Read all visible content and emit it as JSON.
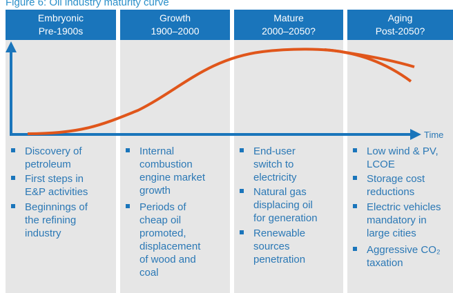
{
  "title": "Figure 6: Oil industry maturity curve",
  "axis_label": "Time",
  "columns": [
    {
      "header": [
        "Embryonic",
        "Pre-1900s"
      ],
      "items": [
        [
          "Discovery of",
          "petroleum"
        ],
        [
          "First steps in",
          "E&P activities"
        ],
        [
          "Beginnings of",
          "the refining",
          "industry"
        ]
      ]
    },
    {
      "header": [
        "Growth",
        "1900–2000"
      ],
      "items": [
        [
          "Internal",
          "combustion",
          "engine market",
          "growth"
        ],
        [
          "Periods of",
          "cheap oil",
          "promoted,",
          "displacement",
          "of wood and",
          "coal"
        ]
      ]
    },
    {
      "header": [
        "Mature",
        "2000–2050?"
      ],
      "items": [
        [
          "End-user",
          "switch to",
          "electricity"
        ],
        [
          "Natural gas",
          "displacing oil",
          "for generation"
        ],
        [
          "Renewable",
          "sources",
          "penetration"
        ]
      ]
    },
    {
      "header": [
        "Aging",
        "Post-2050?"
      ],
      "items": [
        [
          "Low wind & PV,",
          "LCOE"
        ],
        [
          "Storage cost",
          "reductions"
        ],
        [
          "Electric vehicles",
          "mandatory in",
          "large cities"
        ],
        [
          "Aggressive CO₂",
          "taxation"
        ]
      ]
    }
  ]
}
